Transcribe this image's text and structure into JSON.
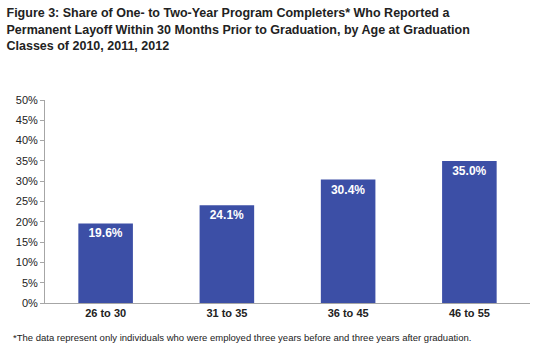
{
  "chart_data": {
    "type": "bar",
    "title": [
      "Figure 3: Share of One- to Two-Year Program Completers* Who Reported a",
      "Permanent Layoff Within 30 Months Prior to Graduation, by Age at Graduation"
    ],
    "subtitle": "Classes of 2010, 2011, 2012",
    "annotations": [
      "*The data represent only individuals who were employed three years before and three years after graduation."
    ],
    "categories": [
      "26 to 30",
      "31 to 35",
      "36 to 45",
      "46 to 55"
    ],
    "values": [
      19.6,
      24.1,
      30.4,
      35.0
    ],
    "value_labels": [
      "19.6%",
      "24.1%",
      "30.4%",
      "35.0%"
    ],
    "color": "#3c4fa6",
    "ylim": [
      0,
      50
    ],
    "yticks": [
      {
        "value": 0,
        "label": "0%"
      },
      {
        "value": 5,
        "label": "5%"
      },
      {
        "value": 10,
        "label": "10%"
      },
      {
        "value": 15,
        "label": "15%"
      },
      {
        "value": 20,
        "label": "20%"
      },
      {
        "value": 25,
        "label": "25%"
      },
      {
        "value": 30,
        "label": "30%"
      },
      {
        "value": 35,
        "label": "35%"
      },
      {
        "value": 40,
        "label": "40%"
      },
      {
        "value": 45,
        "label": "45%"
      },
      {
        "value": 50,
        "label": "50%"
      }
    ],
    "grid": false,
    "data_labels": true
  }
}
